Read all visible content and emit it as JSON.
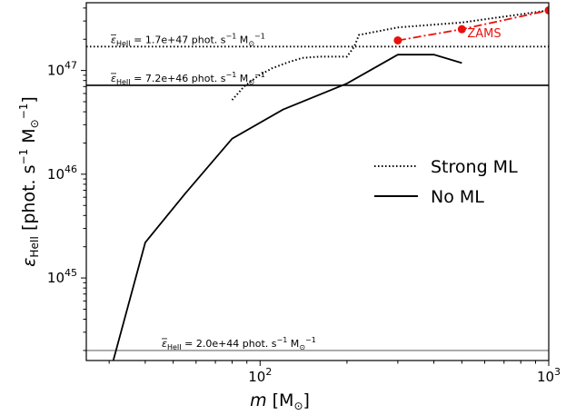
{
  "chart_data": {
    "type": "line",
    "xscale": "log",
    "yscale": "log",
    "xlim": [
      25,
      1000
    ],
    "ylim": [
      1.6e+44,
      4.5e+47
    ],
    "xlabel_main": "m",
    "xlabel_unit": "[M",
    "xlabel_close": "]",
    "ylabel_main": "ε",
    "ylabel_sub": "HeII",
    "ylabel_unit": "[phot. s",
    "ylabel_exp1": "−1",
    "ylabel_m": " M",
    "ylabel_exp2": "−1",
    "ylabel_close": "]",
    "xticks": [
      {
        "value": 100,
        "base": "10",
        "exp": "2"
      },
      {
        "value": 1000,
        "base": "10",
        "exp": "3"
      }
    ],
    "yticks": [
      {
        "value": 1e+45,
        "base": "10",
        "exp": "45"
      },
      {
        "value": 1e+46,
        "base": "10",
        "exp": "46"
      },
      {
        "value": 1e+47,
        "base": "10",
        "exp": "47"
      }
    ],
    "series": [
      {
        "name": "Strong ML",
        "style": "dotted",
        "color": "#000000",
        "x": [
          80,
          88,
          98,
          110,
          125,
          140,
          160,
          180,
          200,
          212,
          220,
          300,
          500,
          1000
        ],
        "y": [
          5.2e+46,
          7e+46,
          8.8e+46,
          1.05e+47,
          1.2e+47,
          1.32e+47,
          1.36e+47,
          1.36e+47,
          1.36e+47,
          1.7e+47,
          2.2e+47,
          2.6e+47,
          2.9e+47,
          3.8e+47
        ]
      },
      {
        "name": "No ML",
        "style": "solid",
        "color": "#000000",
        "x": [
          31,
          40,
          55,
          80,
          120,
          200,
          300,
          400,
          500
        ],
        "y": [
          1.6e+44,
          2.2e+45,
          6.5e+45,
          2.2e+46,
          4.2e+46,
          7.5e+46,
          1.42e+47,
          1.42e+47,
          1.18e+47
        ]
      },
      {
        "name": "ZAMS",
        "style": "dashdot",
        "color": "#e8120c",
        "markers": true,
        "x": [
          300,
          500,
          1000
        ],
        "y": [
          1.95e+47,
          2.5e+47,
          3.8e+47
        ]
      }
    ],
    "hlines": [
      {
        "value": 1.7e+47,
        "style": "dotted",
        "color": "#000000",
        "label_pre": "HeII",
        "label_text": " = 1.7e+47 phot. s",
        "label_exp1": "−1",
        "label_m": " M",
        "label_exp2": "−1"
      },
      {
        "value": 7.2e+46,
        "style": "solid",
        "color": "#000000",
        "label_pre": "HeII",
        "label_text": " = 7.2e+46 phot. s",
        "label_exp1": "−1",
        "label_m": " M",
        "label_exp2": "−1"
      },
      {
        "value": 2e+44,
        "style": "solid",
        "color": "#999999",
        "label_pre": "HeII",
        "label_text": " = 2.0e+44 phot. s",
        "label_exp1": "−1",
        "label_m": " M",
        "label_exp2": "−1"
      }
    ],
    "legend": {
      "placement": "center-right",
      "entries": [
        {
          "label": "Strong ML",
          "style": "dotted"
        },
        {
          "label": "No ML",
          "style": "solid"
        }
      ]
    },
    "annotations": [
      {
        "text": "ZAMS",
        "color": "#e8120c"
      }
    ]
  }
}
